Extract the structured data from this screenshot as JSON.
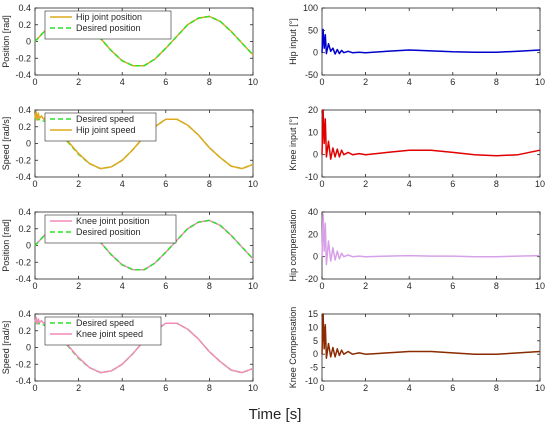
{
  "figure": {
    "shared_xlabel": "Time [s]"
  },
  "chart_data": [
    {
      "type": "line",
      "ylabel": "Position [rad]",
      "xlim": [
        0,
        10
      ],
      "ylim": [
        -0.4,
        0.4
      ],
      "xticks": [
        "0",
        "2",
        "4",
        "6",
        "8",
        "10"
      ],
      "yticks": [
        "0.4",
        "0.2",
        "0",
        "-0.2",
        "-0.4"
      ],
      "legend": "top-left",
      "series": [
        {
          "name": "Hip joint position",
          "color": "#E0A81E",
          "style": "solid",
          "x": [
            0,
            0.5,
            1,
            1.5,
            2,
            2.5,
            3,
            3.5,
            4,
            4.5,
            5,
            5.5,
            6,
            6.5,
            7,
            7.5,
            8,
            8.5,
            9,
            9.5,
            10
          ],
          "y": [
            0,
            0.14,
            0.25,
            0.3,
            0.27,
            0.18,
            0.04,
            -0.11,
            -0.23,
            -0.29,
            -0.29,
            -0.21,
            -0.08,
            0.06,
            0.2,
            0.28,
            0.3,
            0.24,
            0.12,
            -0.02,
            -0.16
          ]
        },
        {
          "name": "Desired position",
          "color": "#2CE02C",
          "style": "dashed",
          "x": [
            0,
            0.5,
            1,
            1.5,
            2,
            2.5,
            3,
            3.5,
            4,
            4.5,
            5,
            5.5,
            6,
            6.5,
            7,
            7.5,
            8,
            8.5,
            9,
            9.5,
            10
          ],
          "y": [
            0,
            0.14,
            0.25,
            0.3,
            0.27,
            0.18,
            0.04,
            -0.11,
            -0.23,
            -0.29,
            -0.29,
            -0.21,
            -0.08,
            0.06,
            0.2,
            0.28,
            0.3,
            0.24,
            0.12,
            -0.02,
            -0.16
          ]
        }
      ]
    },
    {
      "type": "line",
      "ylabel": "Hip input [°]",
      "xlim": [
        0,
        10
      ],
      "ylim": [
        -50,
        100
      ],
      "xticks": [
        "0",
        "2",
        "4",
        "6",
        "8",
        "10"
      ],
      "yticks": [
        "100",
        "50",
        "0",
        "-50"
      ],
      "series": [
        {
          "color": "#0000CC",
          "style": "solid",
          "x": [
            0,
            0.05,
            0.1,
            0.15,
            0.2,
            0.3,
            0.4,
            0.5,
            0.6,
            0.7,
            0.8,
            0.9,
            1.0,
            1.2,
            1.4,
            1.7,
            2,
            3,
            4,
            5,
            6,
            7,
            8,
            9,
            10
          ],
          "y": [
            0,
            52,
            10,
            40,
            -2,
            20,
            3,
            10,
            -3,
            7,
            -2,
            5,
            0,
            3,
            0,
            1,
            0,
            3,
            6,
            4,
            2,
            1,
            1,
            3,
            6
          ]
        }
      ]
    },
    {
      "type": "line",
      "ylabel": "Speed [rad/s]",
      "xlim": [
        0,
        10
      ],
      "ylim": [
        -0.4,
        0.4
      ],
      "xticks": [
        "0",
        "2",
        "4",
        "6",
        "8",
        "10"
      ],
      "yticks": [
        "0.4",
        "0.2",
        "0",
        "-0.2",
        "-0.4"
      ],
      "legend": "top-left",
      "series": [
        {
          "name": "Desired speed",
          "color": "#2CE02C",
          "style": "dashed",
          "x": [
            0,
            0.5,
            1,
            1.5,
            2,
            2.5,
            3,
            3.5,
            4,
            4.5,
            5,
            5.5,
            6,
            6.5,
            7,
            7.5,
            8,
            8.5,
            9,
            9.5,
            10
          ],
          "y": [
            0.3,
            0.26,
            0.16,
            0.02,
            -0.13,
            -0.24,
            -0.3,
            -0.28,
            -0.2,
            -0.07,
            0.08,
            0.2,
            0.29,
            0.29,
            0.22,
            0.1,
            -0.05,
            -0.17,
            -0.27,
            -0.3,
            -0.25
          ]
        },
        {
          "name": "Hip joint speed",
          "color": "#E0A81E",
          "style": "solid",
          "x": [
            0,
            0.05,
            0.1,
            0.15,
            0.2,
            0.3,
            0.4,
            0.5,
            0.6,
            0.8,
            1,
            1.5,
            2,
            2.5,
            3,
            3.5,
            4,
            4.5,
            5,
            5.5,
            6,
            6.5,
            7,
            7.5,
            8,
            8.5,
            9,
            9.5,
            10
          ],
          "y": [
            0.3,
            0.38,
            0.28,
            0.36,
            0.3,
            0.33,
            0.29,
            0.31,
            0.28,
            0.24,
            0.17,
            0.03,
            -0.12,
            -0.24,
            -0.3,
            -0.28,
            -0.2,
            -0.07,
            0.08,
            0.2,
            0.29,
            0.29,
            0.22,
            0.1,
            -0.05,
            -0.17,
            -0.27,
            -0.3,
            -0.25
          ]
        }
      ]
    },
    {
      "type": "line",
      "ylabel": "Knee input [°]",
      "xlim": [
        0,
        10
      ],
      "ylim": [
        -10,
        20
      ],
      "xticks": [
        "0",
        "2",
        "4",
        "6",
        "8",
        "10"
      ],
      "yticks": [
        "20",
        "10",
        "0",
        "-10"
      ],
      "series": [
        {
          "color": "#E00000",
          "style": "solid",
          "x": [
            0,
            0.05,
            0.1,
            0.15,
            0.2,
            0.3,
            0.4,
            0.5,
            0.6,
            0.7,
            0.8,
            0.9,
            1.0,
            1.2,
            1.4,
            1.7,
            2,
            3,
            4,
            5,
            6,
            7,
            8,
            9,
            10
          ],
          "y": [
            0,
            20,
            5,
            16,
            -1,
            6,
            -2,
            3,
            -1,
            2.5,
            -1,
            2,
            0,
            1,
            0,
            0.5,
            0,
            1,
            2,
            2,
            1,
            0,
            -0.5,
            0,
            2
          ]
        }
      ]
    },
    {
      "type": "line",
      "ylabel": "Position [rad]",
      "xlim": [
        0,
        10
      ],
      "ylim": [
        -0.4,
        0.4
      ],
      "xticks": [
        "0",
        "2",
        "4",
        "6",
        "8",
        "10"
      ],
      "yticks": [
        "0.4",
        "0.2",
        "0",
        "-0.2",
        "-0.4"
      ],
      "legend": "top-left",
      "series": [
        {
          "name": "Knee joint position",
          "color": "#F28CB8",
          "style": "solid",
          "x": [
            0,
            0.5,
            1,
            1.5,
            2,
            2.5,
            3,
            3.5,
            4,
            4.5,
            5,
            5.5,
            6,
            6.5,
            7,
            7.5,
            8,
            8.5,
            9,
            9.5,
            10
          ],
          "y": [
            0,
            0.14,
            0.25,
            0.3,
            0.27,
            0.18,
            0.04,
            -0.11,
            -0.23,
            -0.29,
            -0.29,
            -0.21,
            -0.08,
            0.06,
            0.2,
            0.28,
            0.3,
            0.24,
            0.12,
            -0.02,
            -0.16
          ]
        },
        {
          "name": "Desired position",
          "color": "#2CE02C",
          "style": "dashed",
          "x": [
            0,
            0.5,
            1,
            1.5,
            2,
            2.5,
            3,
            3.5,
            4,
            4.5,
            5,
            5.5,
            6,
            6.5,
            7,
            7.5,
            8,
            8.5,
            9,
            9.5,
            10
          ],
          "y": [
            0,
            0.14,
            0.25,
            0.3,
            0.27,
            0.18,
            0.04,
            -0.11,
            -0.23,
            -0.29,
            -0.29,
            -0.21,
            -0.08,
            0.06,
            0.2,
            0.28,
            0.3,
            0.24,
            0.12,
            -0.02,
            -0.16
          ]
        }
      ]
    },
    {
      "type": "line",
      "ylabel": "Hip compensation",
      "xlim": [
        0,
        10
      ],
      "ylim": [
        -20,
        40
      ],
      "xticks": [
        "0",
        "2",
        "4",
        "6",
        "8",
        "10"
      ],
      "yticks": [
        "40",
        "20",
        "0",
        "-20"
      ],
      "series": [
        {
          "color": "#D8A0E8",
          "style": "solid",
          "x": [
            0,
            0.05,
            0.1,
            0.15,
            0.2,
            0.3,
            0.4,
            0.5,
            0.6,
            0.7,
            0.8,
            0.9,
            1.0,
            1.2,
            1.4,
            1.7,
            2,
            3,
            4,
            5,
            6,
            7,
            8,
            9,
            10
          ],
          "y": [
            0,
            38,
            5,
            30,
            -7,
            14,
            -4,
            8,
            -3,
            5,
            -2,
            3,
            0,
            1.5,
            0,
            0.5,
            0,
            0.5,
            1,
            0.5,
            0.5,
            0,
            0,
            0.5,
            1
          ]
        }
      ]
    },
    {
      "type": "line",
      "ylabel": "Speed [rad/s]",
      "xlim": [
        0,
        10
      ],
      "ylim": [
        -0.4,
        0.4
      ],
      "xticks": [
        "0",
        "2",
        "4",
        "6",
        "8",
        "10"
      ],
      "yticks": [
        "0.4",
        "0.2",
        "0",
        "-0.2",
        "-0.4"
      ],
      "legend": "top-left",
      "series": [
        {
          "name": "Desired speed",
          "color": "#2CE02C",
          "style": "dashed",
          "x": [
            0,
            0.5,
            1,
            1.5,
            2,
            2.5,
            3,
            3.5,
            4,
            4.5,
            5,
            5.5,
            6,
            6.5,
            7,
            7.5,
            8,
            8.5,
            9,
            9.5,
            10
          ],
          "y": [
            0.3,
            0.26,
            0.16,
            0.02,
            -0.13,
            -0.24,
            -0.3,
            -0.28,
            -0.2,
            -0.07,
            0.08,
            0.2,
            0.29,
            0.29,
            0.22,
            0.1,
            -0.05,
            -0.17,
            -0.27,
            -0.3,
            -0.25
          ]
        },
        {
          "name": "Knee joint speed",
          "color": "#F28CB8",
          "style": "solid",
          "x": [
            0,
            0.05,
            0.1,
            0.15,
            0.2,
            0.3,
            0.4,
            0.5,
            0.6,
            0.8,
            1,
            1.5,
            2,
            2.5,
            3,
            3.5,
            4,
            4.5,
            5,
            5.5,
            6,
            6.5,
            7,
            7.5,
            8,
            8.5,
            9,
            9.5,
            10
          ],
          "y": [
            0.3,
            0.36,
            0.28,
            0.34,
            0.3,
            0.32,
            0.29,
            0.3,
            0.28,
            0.24,
            0.17,
            0.03,
            -0.12,
            -0.24,
            -0.3,
            -0.28,
            -0.2,
            -0.07,
            0.08,
            0.2,
            0.29,
            0.29,
            0.22,
            0.1,
            -0.05,
            -0.17,
            -0.27,
            -0.3,
            -0.25
          ]
        }
      ]
    },
    {
      "type": "line",
      "ylabel": "Knee Compensation",
      "xlim": [
        0,
        10
      ],
      "ylim": [
        -10,
        15
      ],
      "xticks": [
        "0",
        "2",
        "4",
        "6",
        "8",
        "10"
      ],
      "yticks": [
        "15",
        "10",
        "5",
        "0",
        "-5",
        "-10"
      ],
      "series": [
        {
          "color": "#8B2A00",
          "style": "solid",
          "x": [
            0,
            0.05,
            0.1,
            0.15,
            0.2,
            0.3,
            0.4,
            0.5,
            0.6,
            0.7,
            0.8,
            0.9,
            1.0,
            1.2,
            1.4,
            1.7,
            2,
            3,
            4,
            5,
            6,
            7,
            8,
            9,
            10
          ],
          "y": [
            0,
            15,
            2,
            11,
            -1.5,
            4,
            -1,
            2.5,
            -1,
            2,
            -0.5,
            1.5,
            0,
            1,
            0,
            0.5,
            0,
            0.5,
            1,
            1,
            0.5,
            0,
            0,
            0.5,
            1
          ]
        }
      ]
    }
  ]
}
